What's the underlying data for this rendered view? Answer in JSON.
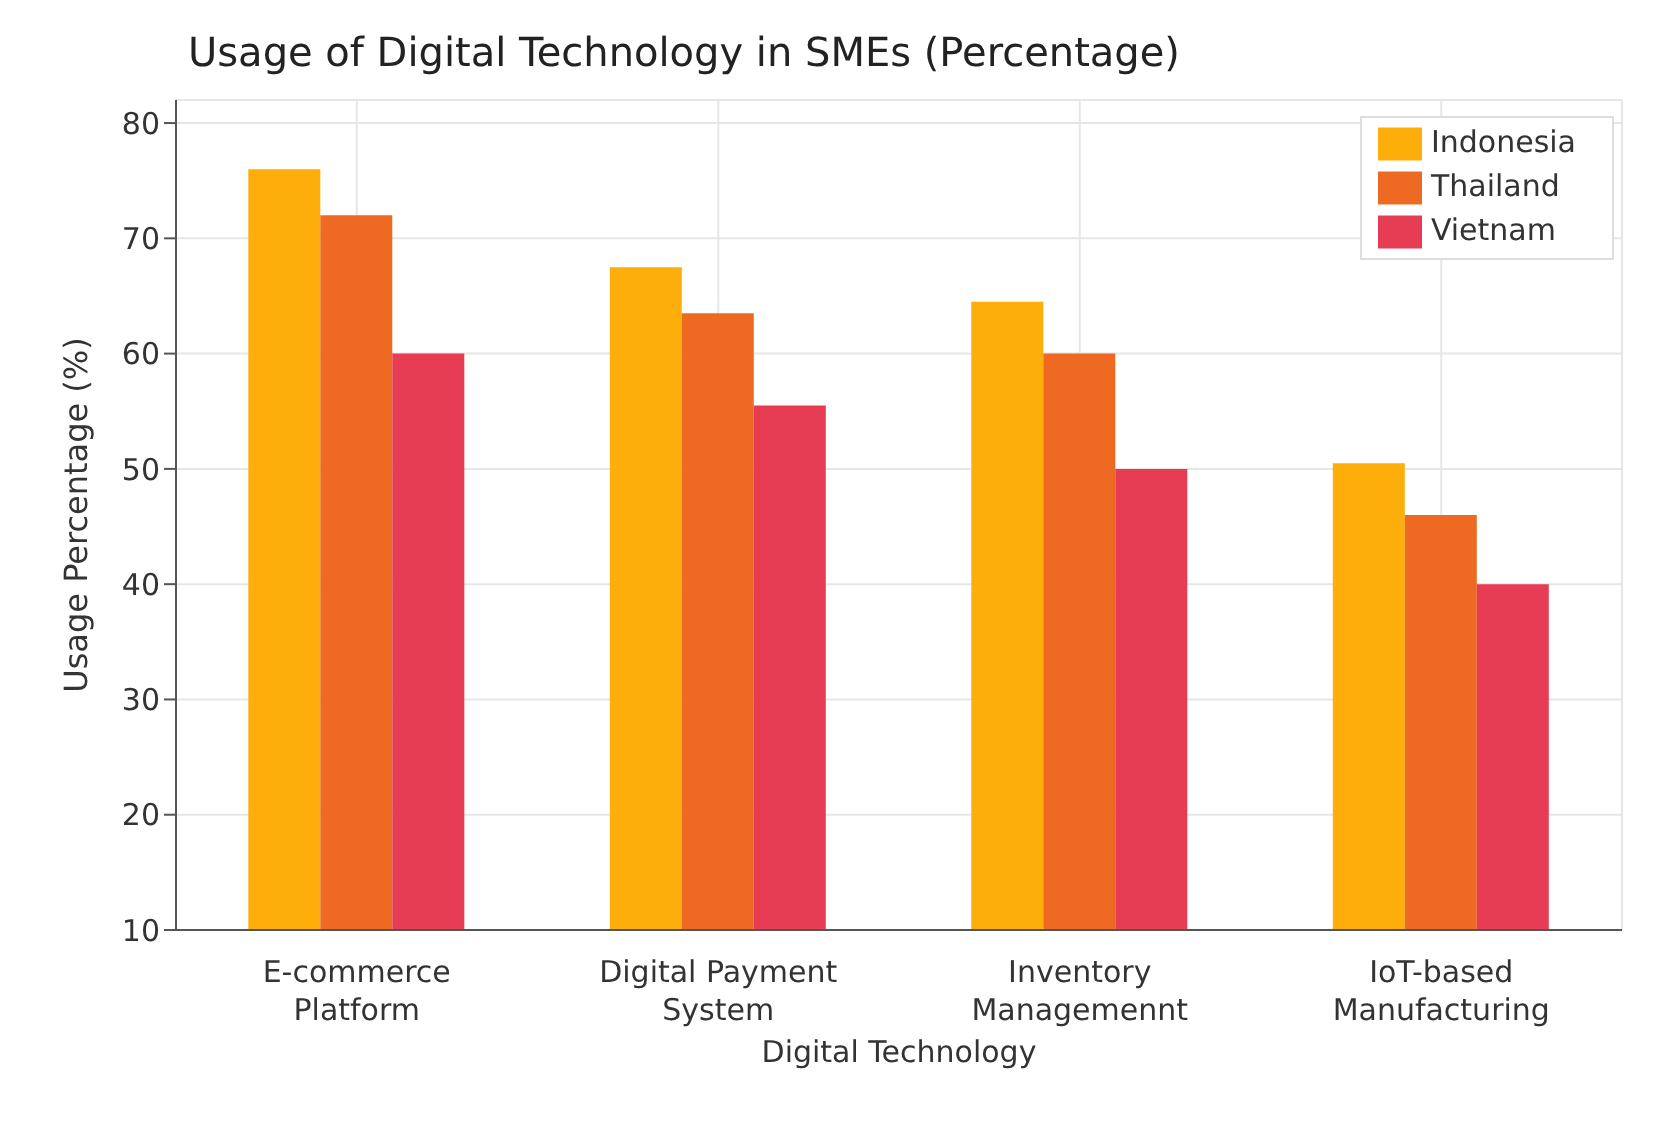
{
  "chart_data": {
    "type": "bar",
    "title": "Usage of Digital Technology in SMEs (Percentage)",
    "xlabel": "Digital Technology",
    "ylabel": "Usage Percentage (%)",
    "categories": [
      "E-commerce\nPlatform",
      "Digital Payment\nSystem",
      "Inventory\nManagemennt",
      "IoT-based\nManufacturing"
    ],
    "series": [
      {
        "name": "Indonesia",
        "color": "#fdae0a",
        "values": [
          76,
          67.5,
          64.5,
          50.5
        ]
      },
      {
        "name": "Thailand",
        "color": "#ee6a22",
        "values": [
          72,
          63.5,
          60,
          46
        ]
      },
      {
        "name": "Vietnam",
        "color": "#e63d55",
        "values": [
          60,
          55.5,
          50,
          40
        ]
      }
    ],
    "ylim": [
      10,
      82
    ],
    "yticks": [
      10,
      20,
      30,
      40,
      50,
      60,
      70,
      80
    ],
    "grid": true,
    "legend": "top right"
  }
}
